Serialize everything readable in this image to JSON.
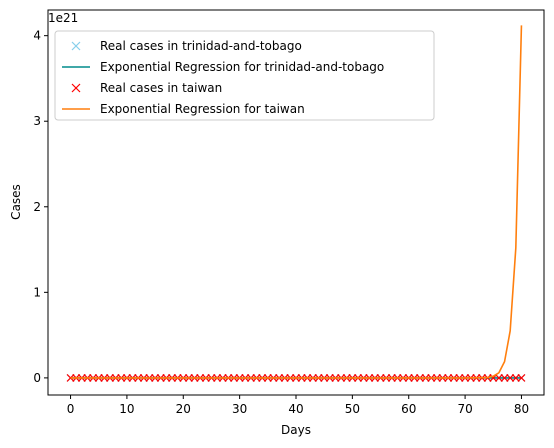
{
  "chart_data": {
    "type": "line",
    "title": "",
    "xlabel": "Days",
    "ylabel": "Cases",
    "offset_label": "1e21",
    "scale_multiplier": 1e+21,
    "xlim": [
      -4,
      84
    ],
    "ylim": [
      -2e+20,
      4.3e+21
    ],
    "xticks": [
      0,
      10,
      20,
      30,
      40,
      50,
      60,
      70,
      80
    ],
    "yticks": [
      0,
      1e+21,
      2e+21,
      3e+21,
      4e+21
    ],
    "ytick_labels": [
      "0",
      "1",
      "2",
      "3",
      "4"
    ],
    "grid": false,
    "legend_position": "upper-left",
    "colors": {
      "real_tt": "#87ceeb",
      "reg_tt": "#008b8b",
      "real_tw": "#ff0000",
      "reg_tw": "#ff7f0e"
    },
    "series": [
      {
        "name": "Real cases in trinidad-and-tobago",
        "kind": "markers",
        "marker": "x",
        "color_key": "real_tt",
        "x_start": 0,
        "x_end": 80,
        "y_constant": 0
      },
      {
        "name": "Exponential Regression for trinidad-and-tobago",
        "kind": "line",
        "color_key": "reg_tt",
        "x_start": 0,
        "x_end": 80,
        "y_constant": 0
      },
      {
        "name": "Real cases in taiwan",
        "kind": "markers",
        "marker": "x",
        "color_key": "real_tw",
        "x_start": 0,
        "x_end": 80,
        "y_constant": 0
      },
      {
        "name": "Exponential Regression for taiwan",
        "kind": "line",
        "color_key": "reg_tw",
        "points": [
          [
            0,
            0
          ],
          [
            70,
            0
          ],
          [
            74,
            4e+18
          ],
          [
            75,
            2e+19
          ],
          [
            76,
            6e+19
          ],
          [
            77,
            1.9e+20
          ],
          [
            78,
            5.5e+20
          ],
          [
            79,
            1.52e+21
          ],
          [
            80,
            4.12e+21
          ]
        ]
      }
    ]
  }
}
